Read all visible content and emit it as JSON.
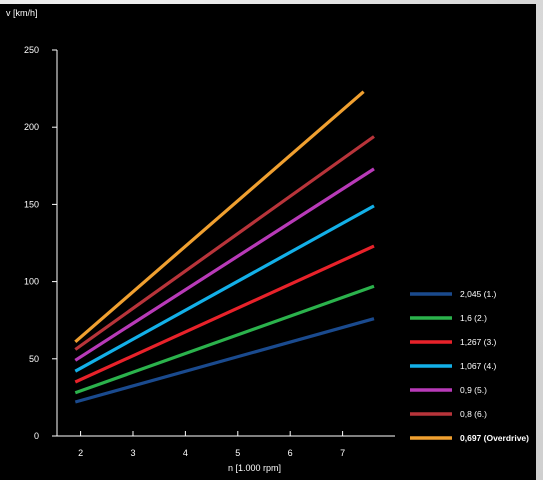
{
  "chart_data": {
    "type": "line",
    "ylabel": "v [km/h]",
    "xlabel": "n [1.000 rpm]",
    "xlim": [
      1.55,
      8.0
    ],
    "ylim": [
      0,
      250
    ],
    "x_ticks": [
      2,
      3,
      4,
      5,
      6,
      7
    ],
    "y_ticks": [
      0,
      50,
      100,
      150,
      200,
      250
    ],
    "grid": false,
    "legend_position": "bottom-right",
    "series": [
      {
        "name": "2,045 (1.)",
        "color": "#1a4a8e",
        "x": [
          1.9,
          7.6
        ],
        "y": [
          22,
          76
        ]
      },
      {
        "name": "1,6 (2.)",
        "color": "#2bb24c",
        "x": [
          1.9,
          7.6
        ],
        "y": [
          28,
          97
        ]
      },
      {
        "name": "1,267 (3.)",
        "color": "#e8222a",
        "x": [
          1.9,
          7.6
        ],
        "y": [
          35,
          123
        ]
      },
      {
        "name": "1,067 (4.)",
        "color": "#13b0e8",
        "x": [
          1.9,
          7.6
        ],
        "y": [
          42,
          149
        ]
      },
      {
        "name": "0,9 (5.)",
        "color": "#b83ab8",
        "x": [
          1.9,
          7.6
        ],
        "y": [
          49,
          173
        ]
      },
      {
        "name": "0,8 (6.)",
        "color": "#b8343a",
        "x": [
          1.9,
          7.6
        ],
        "y": [
          56,
          194
        ]
      },
      {
        "name": "0,697 (Overdrive)",
        "color": "#f0a030",
        "x": [
          1.9,
          7.4
        ],
        "y": [
          61,
          223
        ]
      }
    ]
  }
}
